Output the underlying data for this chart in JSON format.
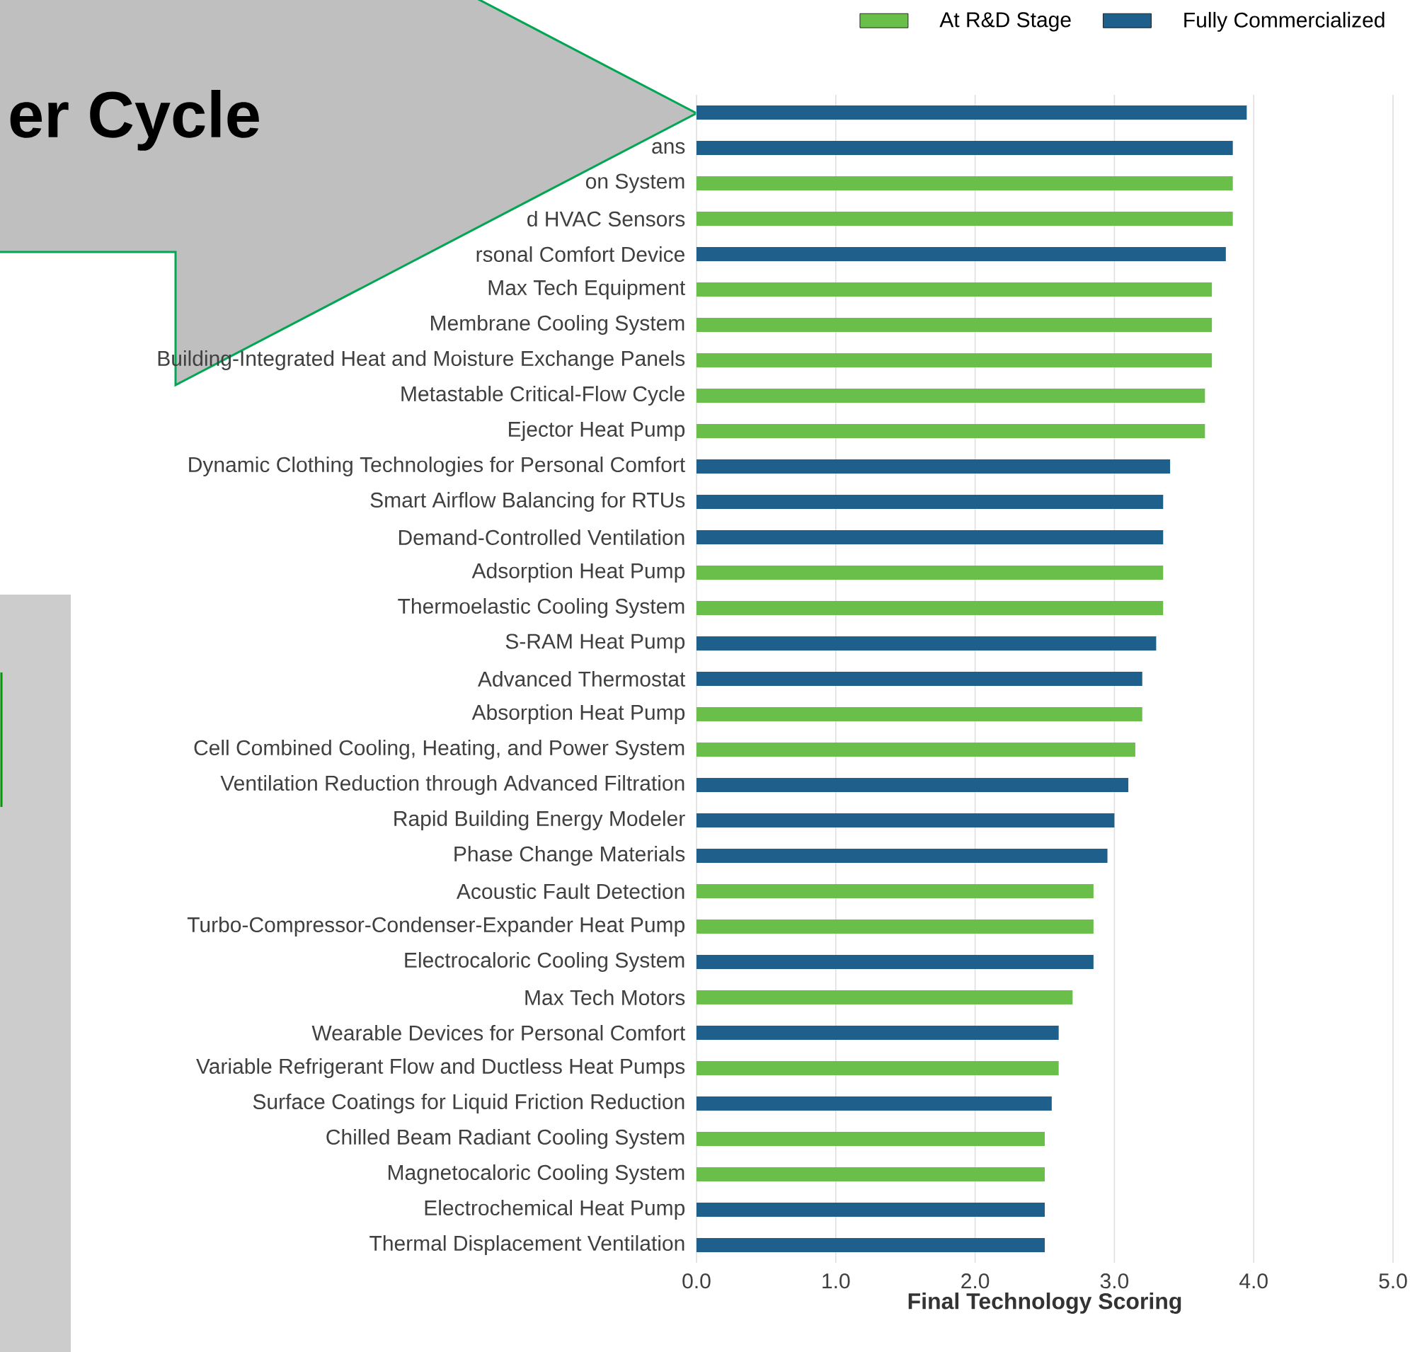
{
  "chart_data": {
    "type": "bar",
    "orientation": "horizontal",
    "xlabel": "Final Technology Scoring",
    "annotations": [
      "er Cycle"
    ],
    "categories": [
      null,
      "ans",
      "on System",
      "d HVAC Sensors",
      "rsonal Comfort Device",
      "Max Tech Equipment",
      "Membrane Cooling System",
      "Building-Integrated Heat and Moisture Exchange Panels",
      "Metastable Critical-Flow Cycle",
      "Ejector Heat Pump",
      "Dynamic Clothing Technologies for Personal Comfort",
      "Smart Airflow Balancing for RTUs",
      "Demand-Controlled Ventilation",
      "Adsorption Heat Pump",
      "Thermoelastic Cooling System",
      "S-RAM Heat Pump",
      "Advanced Thermostat",
      "Absorption Heat Pump",
      "Cell Combined Cooling, Heating, and Power System",
      "Ventilation Reduction through Advanced Filtration",
      "Rapid Building Energy Modeler",
      "Phase Change Materials",
      "Acoustic Fault Detection",
      "Turbo-Compressor-Condenser-Expander Heat Pump",
      "Electrocaloric Cooling System",
      "Max Tech Motors",
      "Wearable Devices for Personal Comfort",
      "Variable Refrigerant Flow and Ductless Heat Pumps",
      "Surface Coatings for Liquid Friction Reduction",
      "Chilled Beam Radiant Cooling System",
      "Magnetocaloric Cooling System",
      "Electrochemical Heat Pump",
      "Thermal Displacement Ventilation"
    ],
    "series": [
      {
        "name": "At R&D Stage",
        "color": "#6abf4b",
        "values": [
          null,
          null,
          3.85,
          3.85,
          null,
          3.7,
          3.7,
          3.7,
          3.65,
          3.65,
          null,
          null,
          null,
          3.35,
          3.35,
          null,
          null,
          3.2,
          3.15,
          null,
          null,
          null,
          2.85,
          2.85,
          null,
          2.7,
          null,
          2.6,
          null,
          2.5,
          2.5,
          null,
          null
        ]
      },
      {
        "name": "Fully Commercialized",
        "color": "#1f5f8b",
        "values": [
          3.95,
          3.85,
          null,
          null,
          3.8,
          null,
          null,
          null,
          null,
          null,
          3.4,
          3.35,
          3.35,
          null,
          null,
          3.3,
          3.2,
          null,
          null,
          3.1,
          3.0,
          2.95,
          null,
          null,
          2.85,
          null,
          2.6,
          null,
          2.55,
          null,
          null,
          2.5,
          2.5
        ]
      }
    ],
    "xlim": [
      0,
      5
    ],
    "xticks": [
      {
        "value": 0,
        "label": "0.0"
      },
      {
        "value": 1,
        "label": "1.0"
      },
      {
        "value": 2,
        "label": "2.0"
      },
      {
        "value": 3,
        "label": "3.0"
      },
      {
        "value": 4,
        "label": "4.0"
      },
      {
        "value": 5,
        "label": "5.0"
      }
    ],
    "grid": "x",
    "legend": "top right"
  }
}
